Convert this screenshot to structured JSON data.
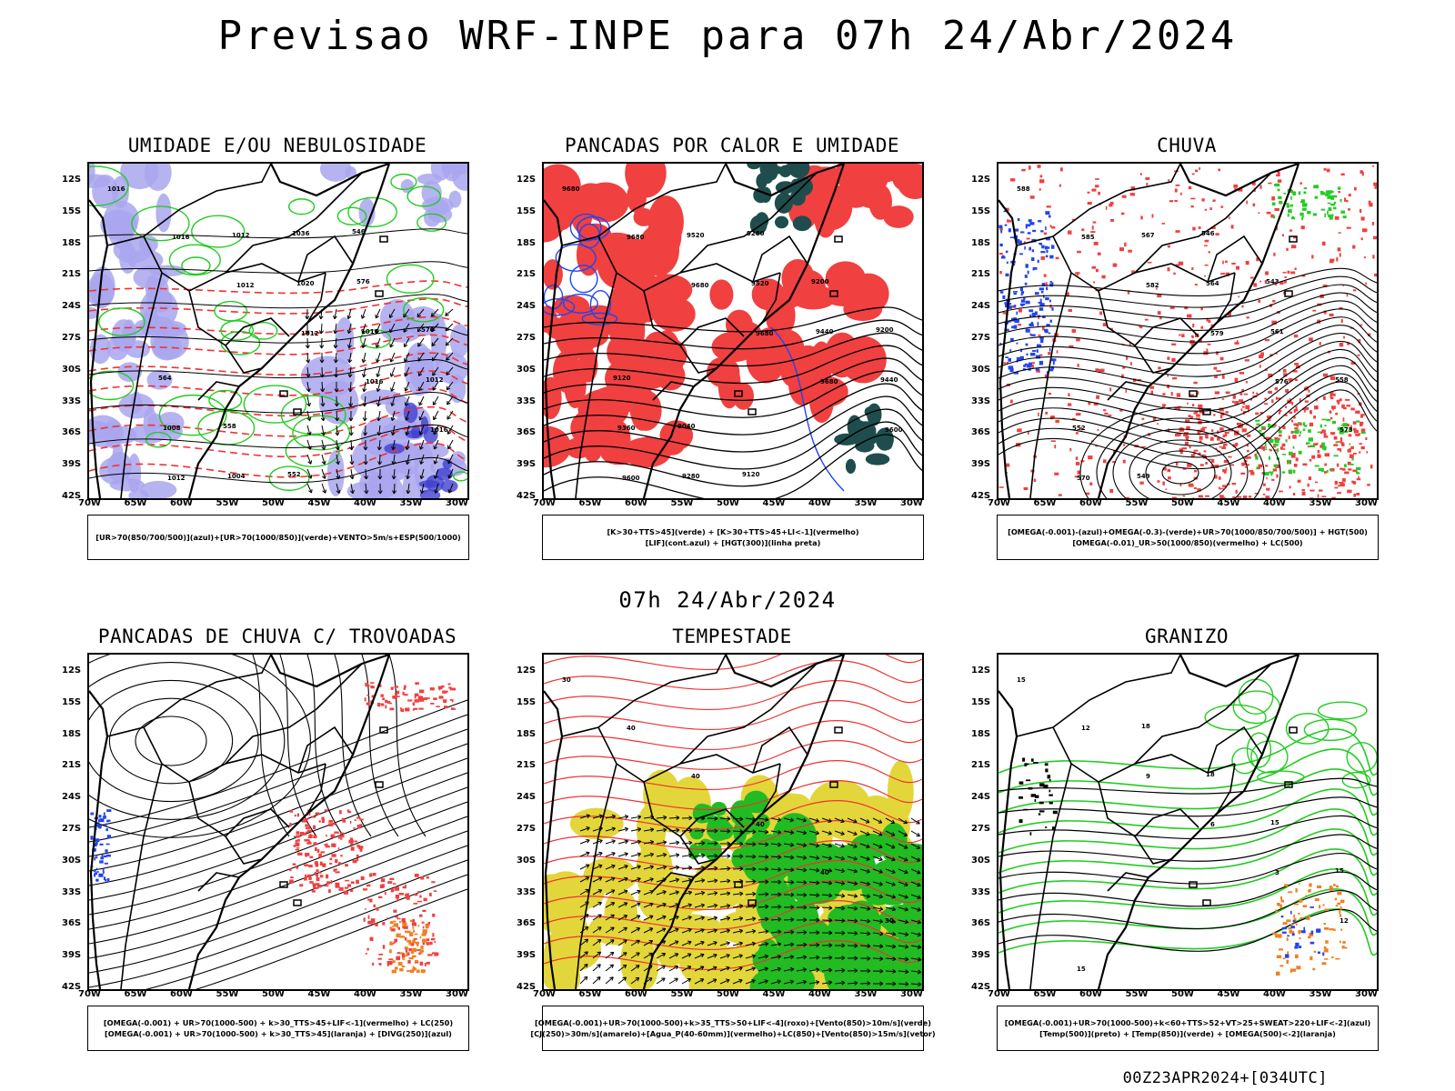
{
  "main_title": "Previsao WRF-INPE  para 07h 24/Abr/2024",
  "mid_title": "07h 24/Abr/2024",
  "footer": "00Z23APR2024+[034UTC]",
  "lat_labels": [
    "12S",
    "15S",
    "18S",
    "21S",
    "24S",
    "27S",
    "30S",
    "33S",
    "36S",
    "39S",
    "42S"
  ],
  "lon_labels": [
    "70W",
    "65W",
    "60W",
    "55W",
    "50W",
    "45W",
    "40W",
    "35W",
    "30W"
  ],
  "panels": [
    {
      "title": "UMIDADE E/OU NEBULOSIDADE",
      "legend": [
        "[UR>70(850/700/500)](azul)+[UR>70(1000/850)](verde)+VENTO>5m/s+ESP(500/1000)"
      ],
      "contour_labels": [
        "1016",
        "1016",
        "1012",
        "1012",
        "1016",
        "1016",
        "1012",
        "1012",
        "1020",
        "1016",
        "1012",
        "1008",
        "1004",
        "1036",
        "576",
        "570",
        "564",
        "558",
        "552",
        "546"
      ],
      "layers": [
        "blue",
        "green",
        "redDashed",
        "contour",
        "arrows"
      ]
    },
    {
      "title": "PANCADAS POR CALOR E UMIDADE",
      "legend": [
        "[K>30+TTS>45](verde) + [K>30+TTS>45+LI<-1](vermelho)",
        "[LIF](cont.azul) + [HGT(300)](linha preta)"
      ],
      "contour_labels": [
        "9680",
        "9680",
        "9680",
        "9680",
        "9680",
        "9600",
        "9600",
        "9520",
        "9520",
        "9440",
        "9440",
        "9360",
        "9280",
        "9280",
        "9200",
        "9200",
        "9120",
        "9040",
        "9120"
      ],
      "layers": [
        "red",
        "darkgreen",
        "blueLine",
        "contour"
      ]
    },
    {
      "title": "CHUVA",
      "legend": [
        "[OMEGA(-0.001)-(azul)+OMEGA(-0.3)-(verde)+UR>70(1000/850/700/500)] + HGT(500)",
        "[OMEGA(-0.01)_UR>50(1000/850)(vermelho) + LC(500)"
      ],
      "contour_labels": [
        "588",
        "585",
        "582",
        "579",
        "576",
        "573",
        "570",
        "567",
        "564",
        "561",
        "558",
        "552",
        "549",
        "546",
        "543"
      ],
      "layers": [
        "redScatter",
        "greenScatter",
        "blueScatter",
        "contour"
      ]
    },
    {
      "title": "PANCADAS DE CHUVA C/ TROVOADAS",
      "legend": [
        "[OMEGA(-0.001) + UR>70(1000-500) + k>30_TTS>45+LIF<-1](vermelho) + LC(250)",
        "[OMEGA(-0.001) + UR>70(1000-500) + k>30_TTS>45](laranja) + [DIVG(250)](azul)"
      ],
      "contour_labels": [],
      "layers": [
        "redScatter",
        "orangeScatter",
        "blueScatter",
        "streamlines"
      ]
    },
    {
      "title": "TEMPESTADE",
      "legend": [
        "[OMEGA(-0.001)+UR>70(1000-500)+k>35_TTS>50+LIF<-4](roxo)+[Vento(850)>10m/s](verde)",
        "[CJ(250)>30m/s](amarelo)+[Agua_P(40-60mm)](vermelho)+LC(850)+[Vento(850)>15m/s](vetor)"
      ],
      "contour_labels": [
        "30",
        "40",
        "40",
        "40",
        "40",
        "30"
      ],
      "layers": [
        "yellow",
        "green",
        "redLines",
        "arrows"
      ]
    },
    {
      "title": "GRANIZO",
      "legend": [
        "[OMEGA(-0.001)+UR>70(1000-500)+k<60+TTS>52+VT>25+SWEAT>220+LIF<-2](azul)",
        "[Temp(500)](preto) + [Temp(850)](verde) + [OMEGA(500)<-2](laranja)"
      ],
      "contour_labels": [
        "15",
        "12",
        "9",
        "6",
        "3",
        "12",
        "15",
        "18",
        "18",
        "15",
        "15"
      ],
      "layers": [
        "greenLines",
        "contour",
        "orangeScatter"
      ]
    }
  ]
}
